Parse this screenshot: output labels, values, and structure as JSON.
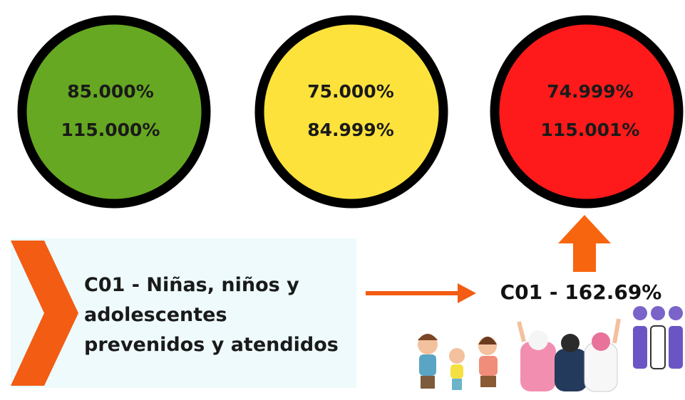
{
  "circles": [
    {
      "lines": [
        "85.000%",
        "115.000%"
      ]
    },
    {
      "lines": [
        "75.000%",
        "84.999%"
      ]
    },
    {
      "lines": [
        "74.999%",
        "115.001%"
      ]
    }
  ],
  "component": {
    "label": "C01 - Niñas, niños y adolescentes prevenidos y atendidos"
  },
  "result": "C01 - 162.69%"
}
